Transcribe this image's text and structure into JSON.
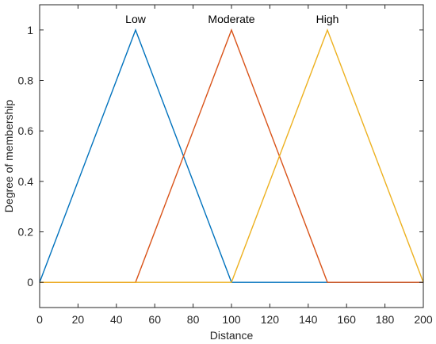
{
  "chart_data": {
    "type": "line",
    "title": "",
    "xlabel": "Distance",
    "ylabel": "Degree of membership",
    "xlim": [
      0,
      200
    ],
    "ylim": [
      -0.1,
      1.1
    ],
    "xticks": [
      0,
      20,
      40,
      60,
      80,
      100,
      120,
      140,
      160,
      180,
      200
    ],
    "yticks": [
      0,
      0.2,
      0.4,
      0.6,
      0.8,
      1
    ],
    "grid": false,
    "legend": "none",
    "series": [
      {
        "name": "Low",
        "color": "#0072BD",
        "x": [
          0,
          50,
          100,
          200
        ],
        "y": [
          0,
          1,
          0,
          0
        ]
      },
      {
        "name": "Moderate",
        "color": "#D95319",
        "x": [
          0,
          50,
          100,
          150,
          200
        ],
        "y": [
          0,
          0,
          1,
          0,
          0
        ]
      },
      {
        "name": "High",
        "color": "#EDB120",
        "x": [
          0,
          100,
          150,
          200
        ],
        "y": [
          0,
          0,
          1,
          0
        ]
      }
    ],
    "annotations": [
      {
        "text": "Low",
        "x": 50,
        "y": 1
      },
      {
        "text": "Moderate",
        "x": 100,
        "y": 1
      },
      {
        "text": "High",
        "x": 150,
        "y": 1
      }
    ]
  }
}
